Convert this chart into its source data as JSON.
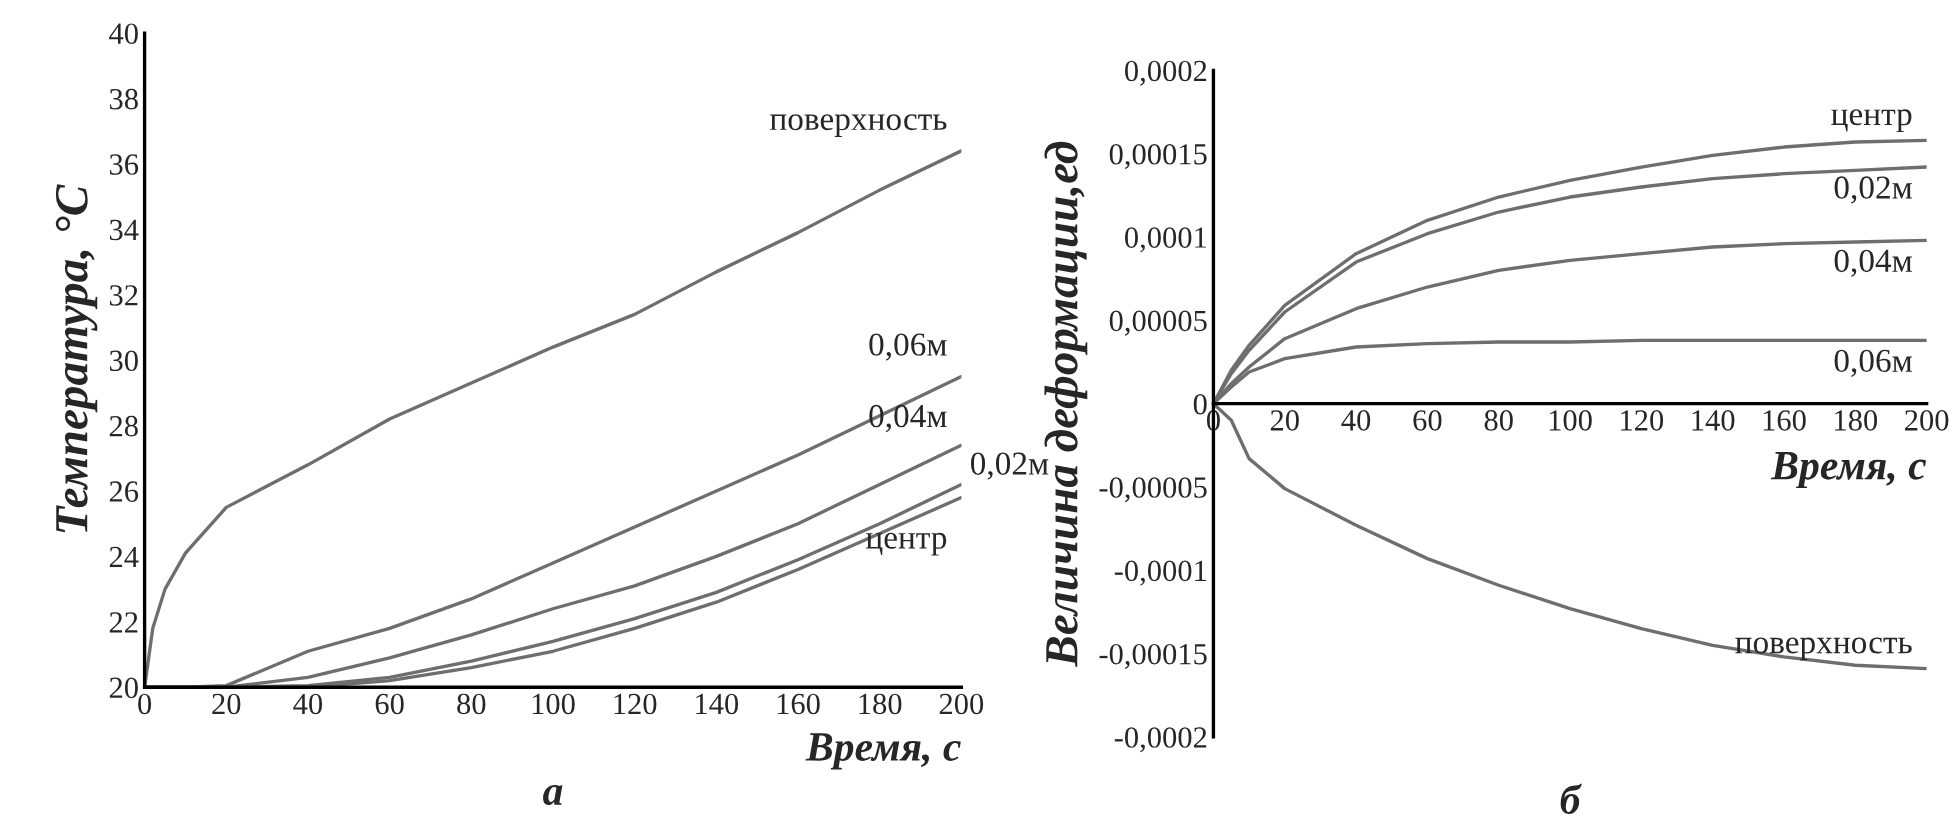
{
  "chart_data": [
    {
      "type": "line",
      "title": "а",
      "xlabel": "Время, с",
      "ylabel": "Температура, °С",
      "x": [
        0,
        2,
        5,
        10,
        20,
        40,
        60,
        80,
        100,
        120,
        140,
        160,
        180,
        200
      ],
      "series": [
        {
          "name": "поверхность",
          "color": "#6e6e6e",
          "values": [
            20,
            21.8,
            23,
            24.1,
            25.5,
            26.8,
            28.2,
            29.3,
            30.4,
            31.4,
            32.7,
            33.9,
            35.2,
            36.4
          ]
        },
        {
          "name": "0,06м",
          "color": "#6e6e6e",
          "values": [
            20,
            20,
            20,
            20,
            20.05,
            21.1,
            21.8,
            22.7,
            23.8,
            24.9,
            26.0,
            27.1,
            28.3,
            29.5
          ]
        },
        {
          "name": "0,04м",
          "color": "#6e6e6e",
          "values": [
            20,
            20,
            20,
            20,
            20,
            20.3,
            20.9,
            21.6,
            22.4,
            23.1,
            24.0,
            25.0,
            26.2,
            27.4
          ]
        },
        {
          "name": "0,02м",
          "color": "#6e6e6e",
          "values": [
            20,
            20,
            20,
            20,
            20,
            20.05,
            20.3,
            20.8,
            21.4,
            22.1,
            22.9,
            23.9,
            25.0,
            26.2
          ]
        },
        {
          "name": "центр",
          "color": "#6e6e6e",
          "values": [
            20,
            20,
            20,
            20,
            20,
            20,
            20.2,
            20.6,
            21.1,
            21.8,
            22.6,
            23.6,
            24.7,
            25.8
          ]
        }
      ],
      "xlim": [
        0,
        200
      ],
      "ylim": [
        20,
        40
      ],
      "xticks": [
        0,
        20,
        40,
        60,
        80,
        100,
        120,
        140,
        160,
        180,
        200
      ],
      "yticks": [
        20,
        22,
        24,
        26,
        28,
        30,
        32,
        34,
        36,
        38,
        40
      ],
      "grid": false,
      "legend": false,
      "marker": "none",
      "line_style": "solid"
    },
    {
      "type": "line",
      "title": "б",
      "xlabel": "Время, с",
      "ylabel": "Величина деформации,ед",
      "x": [
        0,
        5,
        10,
        20,
        40,
        60,
        80,
        100,
        120,
        140,
        160,
        180,
        200
      ],
      "series": [
        {
          "name": "центр",
          "color": "#6e6e6e",
          "values": [
            0,
            2e-05,
            3.5e-05,
            5.9e-05,
            9e-05,
            0.00011,
            0.000124,
            0.000134,
            0.000142,
            0.000149,
            0.000154,
            0.000157,
            0.000158
          ]
        },
        {
          "name": "0,02м",
          "color": "#6e6e6e",
          "values": [
            0,
            1.8e-05,
            3.2e-05,
            5.5e-05,
            8.5e-05,
            0.000102,
            0.000115,
            0.000124,
            0.00013,
            0.000135,
            0.000138,
            0.00014,
            0.000142
          ]
        },
        {
          "name": "0,04м",
          "color": "#6e6e6e",
          "values": [
            0,
            1.2e-05,
            2.2e-05,
            3.9e-05,
            5.7e-05,
            7e-05,
            8e-05,
            8.6e-05,
            9e-05,
            9.4e-05,
            9.6e-05,
            9.7e-05,
            9.8e-05
          ]
        },
        {
          "name": "0,06м",
          "color": "#6e6e6e",
          "values": [
            0,
            1e-05,
            1.9e-05,
            2.7e-05,
            3.4e-05,
            3.6e-05,
            3.7e-05,
            3.7e-05,
            3.8e-05,
            3.8e-05,
            3.8e-05,
            3.8e-05,
            3.8e-05
          ]
        },
        {
          "name": "поверхность",
          "color": "#6e6e6e",
          "values": [
            0,
            -1e-05,
            -3.3e-05,
            -5.1e-05,
            -7.3e-05,
            -9.3e-05,
            -0.000109,
            -0.000123,
            -0.000135,
            -0.000145,
            -0.000152,
            -0.000157,
            -0.000159
          ]
        }
      ],
      "xlim": [
        0,
        200
      ],
      "ylim": [
        -0.0002,
        0.0002
      ],
      "xticks": [
        0,
        20,
        40,
        60,
        80,
        100,
        120,
        140,
        160,
        180,
        200
      ],
      "yticks": [
        {
          "value": -0.0002,
          "label": "-0,0002"
        },
        {
          "value": -0.00015,
          "label": "-0,00015"
        },
        {
          "value": -0.0001,
          "label": "-0,0001"
        },
        {
          "value": -5e-05,
          "label": "-0,00005"
        },
        {
          "value": 0,
          "label": "0"
        },
        {
          "value": 5e-05,
          "label": "0,00005"
        },
        {
          "value": 0.0001,
          "label": "0,0001"
        },
        {
          "value": 0.00015,
          "label": "0,00015"
        },
        {
          "value": 0.0002,
          "label": "0,0002"
        }
      ],
      "grid": false,
      "legend": false,
      "marker": "none",
      "line_style": "solid"
    }
  ]
}
